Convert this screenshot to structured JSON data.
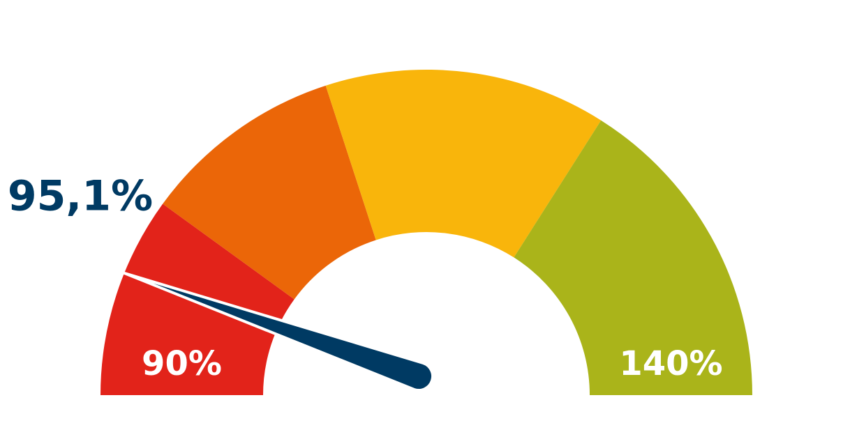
{
  "chart_data": {
    "type": "gauge",
    "value": 95.1,
    "value_label": "95,1%",
    "value_color": "#003a63",
    "needle_color": "#003a63",
    "ylim": [
      90,
      140
    ],
    "yticks": [
      {
        "value": 90,
        "label": "90%"
      },
      {
        "value": 140,
        "label": "140%"
      }
    ],
    "bands": [
      {
        "range": [
          90,
          100
        ],
        "color": "#e2231a"
      },
      {
        "range": [
          100,
          110
        ],
        "color": "#eb6608"
      },
      {
        "range": [
          110,
          124
        ],
        "color": "#f9b50b"
      },
      {
        "range": [
          124,
          140
        ],
        "color": "#aab41a"
      }
    ]
  }
}
